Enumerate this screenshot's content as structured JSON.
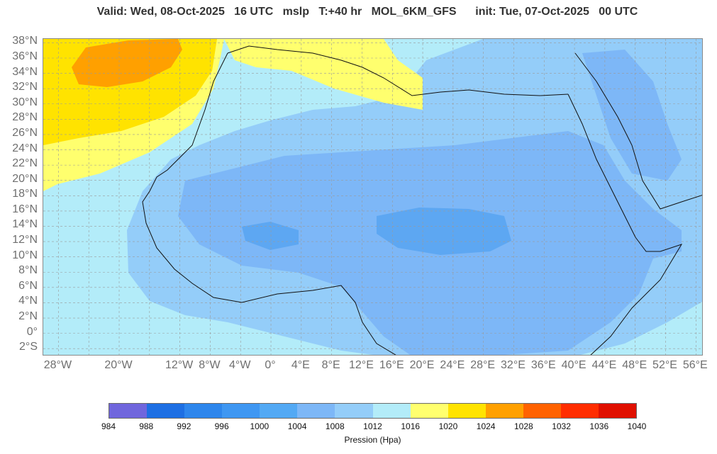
{
  "header": {
    "title": "Valid: Wed, 08-Oct-2025   16 UTC   mslp   T:+40 hr   MOL_6KM_GFS      init: Tue, 07-Oct-2025   00 UTC"
  },
  "map": {
    "variable": "mslp",
    "model": "MOL_6KM_GFS",
    "lon_range": [
      -30,
      57
    ],
    "lat_range": [
      -3,
      38.5
    ],
    "lat_labels": [
      "38°N",
      "36°N",
      "34°N",
      "32°N",
      "30°N",
      "28°N",
      "26°N",
      "24°N",
      "22°N",
      "20°N",
      "18°N",
      "16°N",
      "14°N",
      "12°N",
      "10°N",
      "8°N",
      "6°N",
      "4°N",
      "2°N",
      "0°",
      "2°S"
    ],
    "lon_labels": [
      "28°W",
      "20°W",
      "12°W",
      "8°W",
      "4°W",
      "0°",
      "4°E",
      "8°E",
      "12°E",
      "16°E",
      "20°E",
      "24°E",
      "28°E",
      "32°E",
      "36°E",
      "40°E",
      "44°E",
      "48°E",
      "52°E",
      "56°E"
    ],
    "colors": {
      "p1004": "#7db7f7",
      "p1008": "#94cdf9",
      "p1012": "#b3ecf9",
      "p1016": "#ffff6e",
      "p1020": "#ffe300",
      "p1024": "#ffa000",
      "p1000": "#5da7f2",
      "gridline": "#9a9a9a",
      "coast": "#111111"
    }
  },
  "colorbar": {
    "colors": [
      "#7066dd",
      "#1e6fe3",
      "#2e86ec",
      "#3f97f2",
      "#53a9f4",
      "#7db7f7",
      "#94cdf9",
      "#b3ecf9",
      "#ffff6e",
      "#ffe300",
      "#ffa000",
      "#ff6200",
      "#ff2d00",
      "#e01000"
    ],
    "labels": [
      "984",
      "988",
      "992",
      "996",
      "1000",
      "1004",
      "1008",
      "1012",
      "1016",
      "1020",
      "1024",
      "1028",
      "1032",
      "1036",
      "1040"
    ],
    "unit": "Pression (Hpa)"
  }
}
